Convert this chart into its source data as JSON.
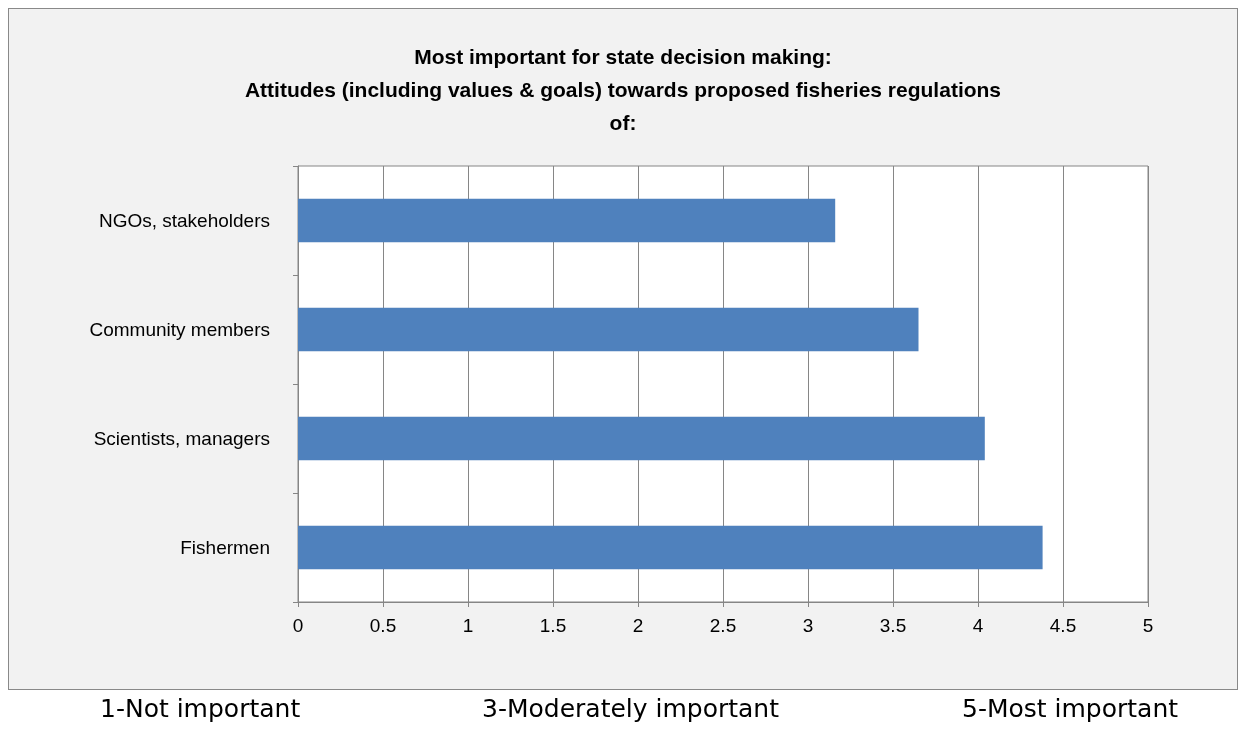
{
  "chart_data": {
    "type": "bar",
    "orientation": "horizontal",
    "title": "Most important for state decision making:\nAttitudes (including values & goals) towards proposed fisheries regulations\nof:",
    "categories": [
      "NGOs, stakeholders",
      "Community members",
      "Scientists, managers",
      "Fishermen"
    ],
    "values": [
      3.16,
      3.65,
      4.04,
      4.38
    ],
    "color": "#4f81bd",
    "xlim": [
      0,
      5
    ],
    "xticks": [
      0,
      0.5,
      1,
      1.5,
      2,
      2.5,
      3,
      3.5,
      4,
      4.5,
      5
    ],
    "grid": "x",
    "annotations": [
      "1-Not important",
      "3-Moderately important",
      "5-Most important"
    ]
  }
}
